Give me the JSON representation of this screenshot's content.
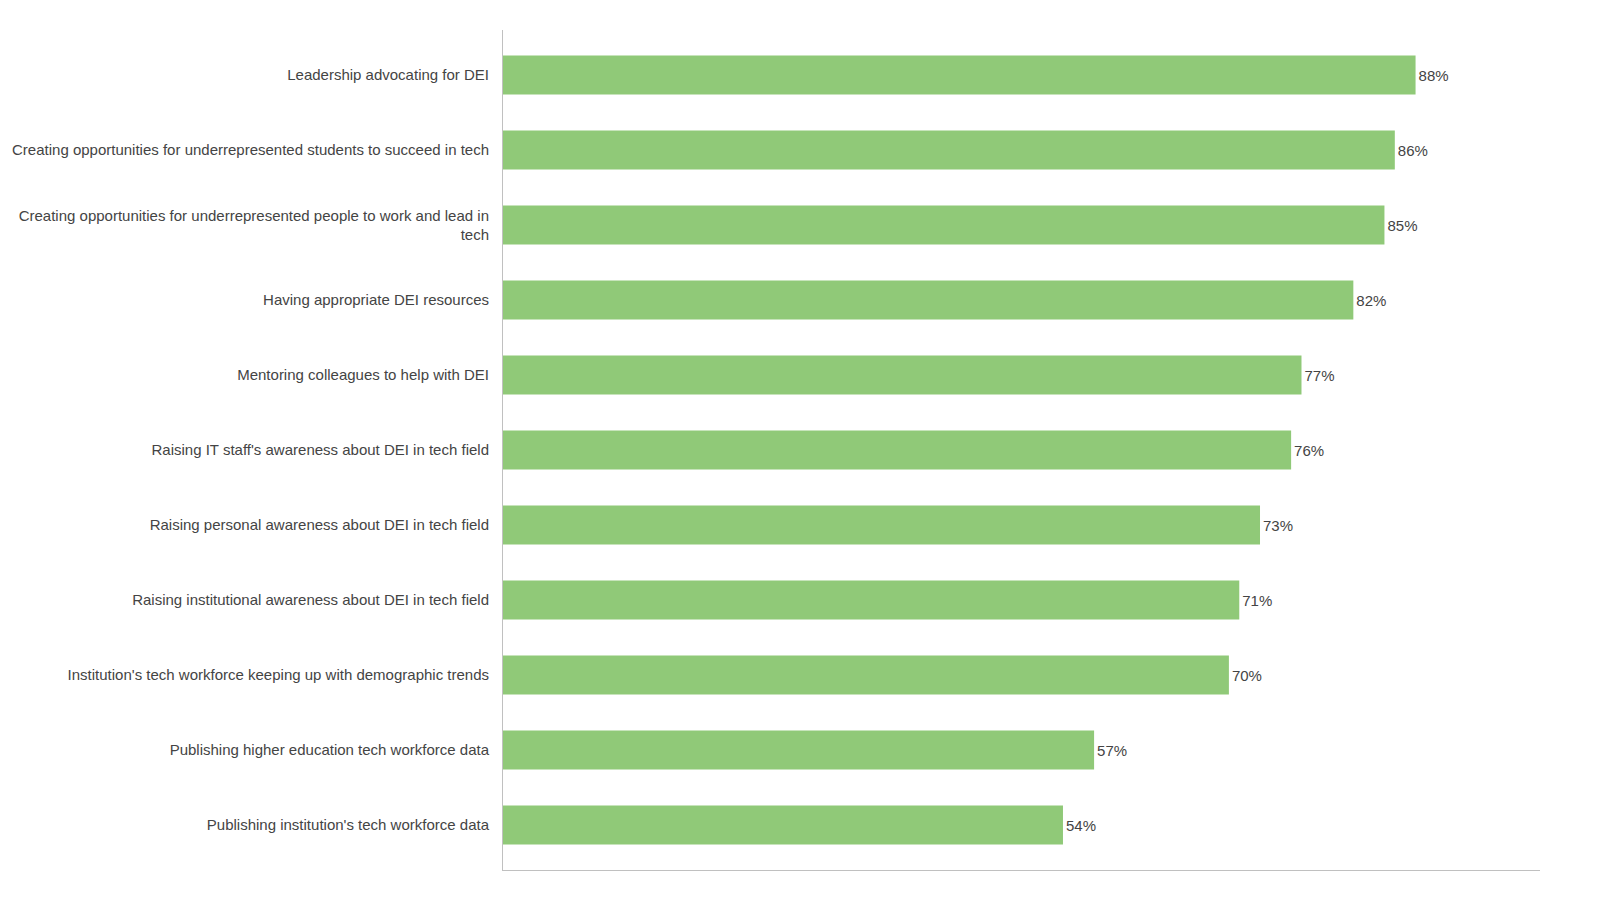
{
  "chart_data": {
    "type": "bar",
    "orientation": "horizontal",
    "categories": [
      "Publishing institution's tech workforce data",
      "Publishing higher education tech workforce data",
      "Institution's tech workforce keeping up with demographic trends",
      "Raising institutional awareness about DEI in tech field",
      "Raising personal awareness about DEI in tech field",
      "Raising IT staff's awareness about DEI in tech field",
      "Mentoring colleagues to help with DEI",
      "Having appropriate DEI resources",
      "Creating opportunities for underrepresented people to work and lead in\ntech",
      "Creating opportunities for underrepresented students to succeed in tech",
      "Leadership advocating for DEI"
    ],
    "values": [
      54,
      57,
      70,
      71,
      73,
      76,
      77,
      82,
      85,
      86,
      88
    ],
    "value_labels": [
      "54%",
      "57%",
      "70%",
      "71%",
      "73%",
      "76%",
      "77%",
      "82%",
      "85%",
      "86%",
      "88%"
    ],
    "color": "#90C978",
    "xlim": [
      0,
      100
    ],
    "data_labels": true,
    "tick_labels": "y",
    "grid": false
  }
}
